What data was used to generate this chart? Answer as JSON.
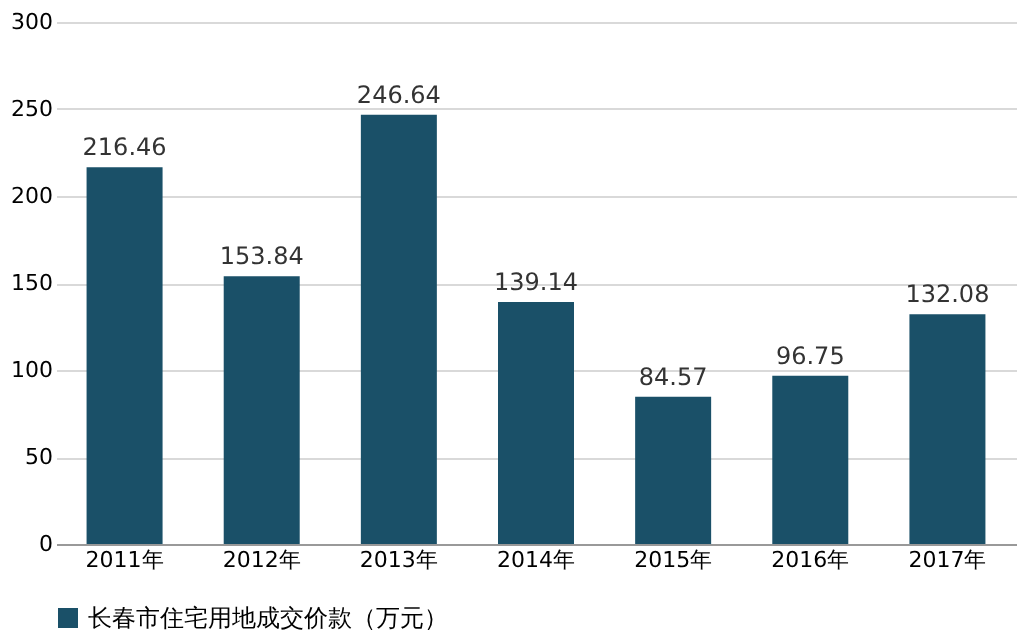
{
  "chart_data": {
    "type": "bar",
    "categories": [
      "2011年",
      "2012年",
      "2013年",
      "2014年",
      "2015年",
      "2016年",
      "2017年"
    ],
    "series": [
      {
        "name": "长春市住宅用地成交价款（万元）",
        "color": "#1a5068",
        "values": [
          216.46,
          153.84,
          246.64,
          139.14,
          84.57,
          96.75,
          132.08
        ]
      }
    ],
    "ylim": [
      0,
      300
    ],
    "yticks": [
      0,
      50,
      100,
      150,
      200,
      250,
      300
    ],
    "grid": "y",
    "legend": "bottom",
    "data_labels": true
  }
}
